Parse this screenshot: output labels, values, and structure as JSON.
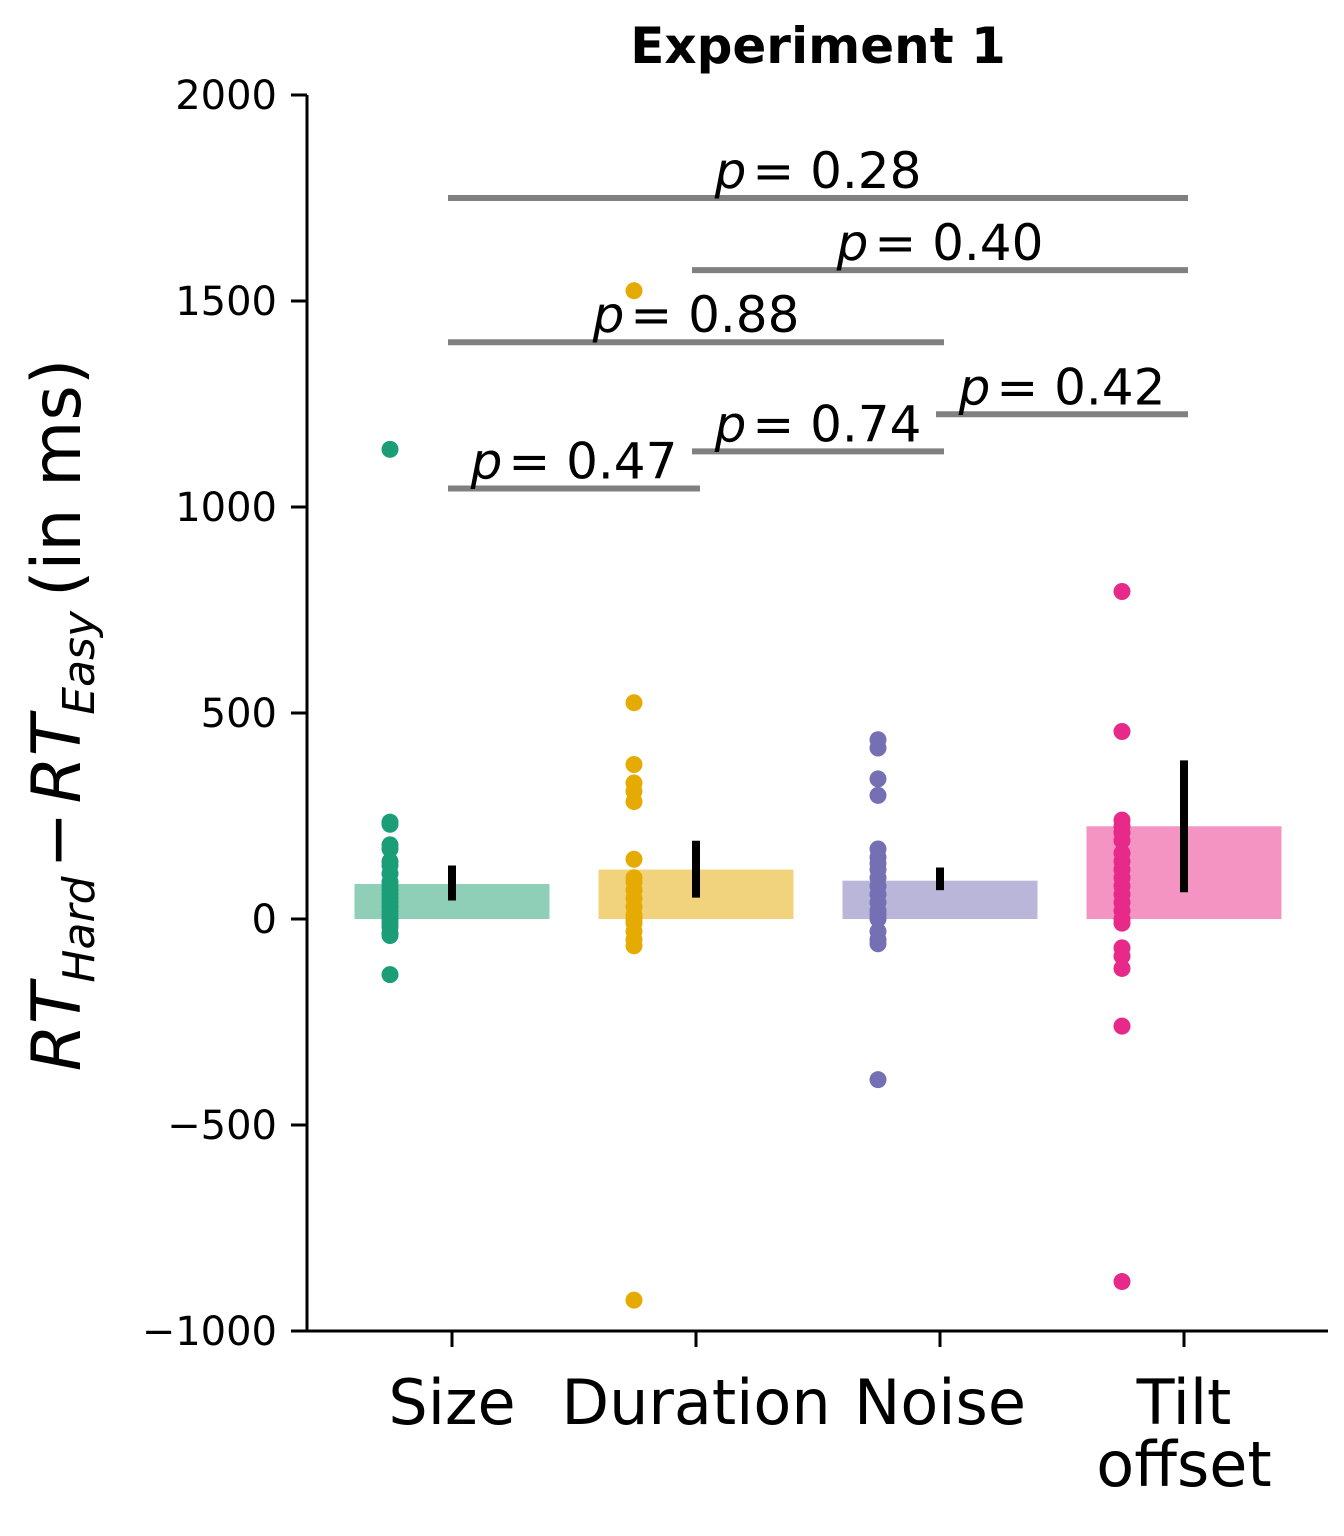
{
  "chart_data": {
    "type": "bar",
    "title": "Experiment 1",
    "ylabel": {
      "text": "RT_Hard − RT_Easy (in ms)",
      "rt1": "RT",
      "sub1": "Hard",
      "minus": "−",
      "rt2": "RT",
      "sub2": "Easy",
      "units": "(in ms)"
    },
    "ylim": [
      -1000,
      2000
    ],
    "yticks": [
      -1000,
      -500,
      0,
      500,
      1000,
      1500,
      2000
    ],
    "ytick_labels": [
      "−1000",
      "−500",
      "0",
      "500",
      "1000",
      "1500",
      "2000"
    ],
    "categories": [
      "Size",
      "Duration",
      "Noise",
      "Tilt offset"
    ],
    "category_lines": [
      [
        "Size"
      ],
      [
        "Duration"
      ],
      [
        "Noise"
      ],
      [
        "Tilt",
        "offset"
      ]
    ],
    "bar_colors": [
      "#8fcfb8",
      "#f1d37e",
      "#b9b6d9",
      "#f394c3"
    ],
    "point_colors": [
      "#1b9e77",
      "#e6ab02",
      "#7570b3",
      "#e7298a"
    ],
    "means": [
      85,
      120,
      93,
      225
    ],
    "errors": [
      [
        45,
        130
      ],
      [
        52,
        190
      ],
      [
        70,
        125
      ],
      [
        65,
        385
      ]
    ],
    "points": [
      [
        1140,
        235,
        230,
        180,
        170,
        140,
        130,
        110,
        90,
        80,
        70,
        60,
        50,
        40,
        30,
        20,
        10,
        0,
        -10,
        -20,
        -35,
        -40,
        -135
      ],
      [
        1525,
        525,
        375,
        330,
        310,
        285,
        145,
        100,
        90,
        70,
        50,
        30,
        10,
        0,
        -10,
        -30,
        -50,
        -65,
        -925
      ],
      [
        435,
        415,
        340,
        300,
        170,
        150,
        135,
        120,
        100,
        80,
        60,
        40,
        20,
        10,
        0,
        -30,
        -50,
        -60,
        -390
      ],
      [
        795,
        455,
        240,
        225,
        210,
        190,
        160,
        140,
        120,
        100,
        80,
        60,
        40,
        20,
        0,
        -10,
        -70,
        -90,
        -120,
        -260,
        -880
      ]
    ],
    "comparisons": [
      {
        "from": 0,
        "to": 3,
        "y": 1750,
        "text": "= 0.28"
      },
      {
        "from": 1,
        "to": 3,
        "y": 1575,
        "text": "= 0.40"
      },
      {
        "from": 0,
        "to": 2,
        "y": 1400,
        "text": "= 0.88"
      },
      {
        "from": 2,
        "to": 3,
        "y": 1225,
        "text": "= 0.42"
      },
      {
        "from": 1,
        "to": 2,
        "y": 1135,
        "text": "= 0.74"
      },
      {
        "from": 0,
        "to": 1,
        "y": 1045,
        "text": "= 0.47"
      }
    ],
    "p_symbol": "p",
    "comparison_color": "#808080",
    "grid": false,
    "legend": "none"
  }
}
